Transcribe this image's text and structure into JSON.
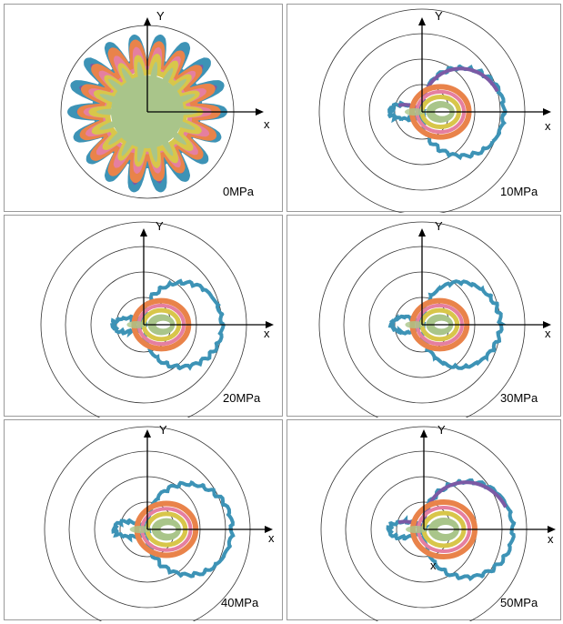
{
  "panels": [
    {
      "label": "0MPa",
      "x_label": "x",
      "y_label": "Y",
      "shape": "star"
    },
    {
      "label": "10MPa",
      "x_label": "x",
      "y_label": "Y",
      "shape": "lobe"
    },
    {
      "label": "20MPa",
      "x_label": "x",
      "y_label": "Y",
      "shape": "lobe"
    },
    {
      "label": "30MPa",
      "x_label": "x",
      "y_label": "Y",
      "shape": "lobe"
    },
    {
      "label": "40MPa",
      "x_label": "x",
      "y_label": "Y",
      "shape": "lobe"
    },
    {
      "label": "50MPa",
      "x_label": "x",
      "y_label": "Y",
      "shape": "lobe",
      "extra_label": "x"
    }
  ],
  "colors": {
    "outer_series": "#3d93b6",
    "outer_alt": "#7b5aa5",
    "orange": "#e9834a",
    "pink": "#e57fa0",
    "yellow": "#d8c64a",
    "green": "#a9c58a",
    "circle": "#333333",
    "axis": "#000000"
  }
}
